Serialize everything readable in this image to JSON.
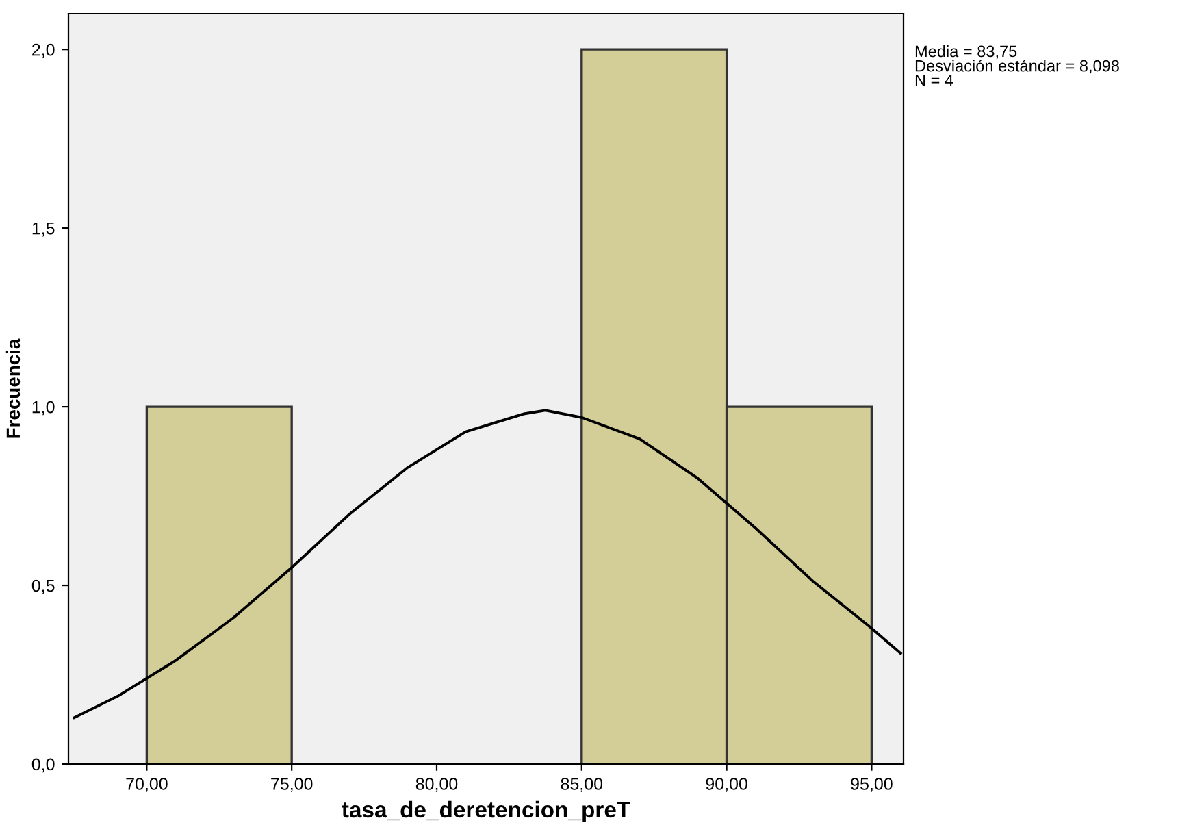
{
  "chart_data": {
    "type": "histogram",
    "xlabel": "tasa_de_deretencion_preT",
    "ylabel": "Frecuencia",
    "bins": [
      70,
      75,
      80,
      85,
      90,
      95
    ],
    "values": [
      1,
      0,
      0,
      2,
      1
    ],
    "color": "#d3ce97",
    "series": [
      {
        "type": "line",
        "color": "#000000",
        "x": [
          67.5,
          69,
          71,
          73,
          75,
          77,
          79,
          81,
          83,
          83.75,
          85,
          87,
          89,
          91,
          93,
          95,
          96
        ],
        "values": [
          0.13,
          0.19,
          0.29,
          0.41,
          0.55,
          0.7,
          0.83,
          0.93,
          0.98,
          0.99,
          0.97,
          0.91,
          0.8,
          0.66,
          0.51,
          0.38,
          0.31
        ]
      }
    ],
    "xlim": [
      67.3,
      96.1
    ],
    "ylim": [
      0,
      2.1
    ],
    "xticks": [
      {
        "value": 70,
        "label": "70,00"
      },
      {
        "value": 75,
        "label": "75,00"
      },
      {
        "value": 80,
        "label": "80,00"
      },
      {
        "value": 85,
        "label": "85,00"
      },
      {
        "value": 90,
        "label": "90,00"
      },
      {
        "value": 95,
        "label": "95,00"
      }
    ],
    "yticks": [
      {
        "value": 0,
        "label": "0,0"
      },
      {
        "value": 0.5,
        "label": "0,5"
      },
      {
        "value": 1,
        "label": "1,0"
      },
      {
        "value": 1.5,
        "label": "1,5"
      },
      {
        "value": 2,
        "label": "2,0"
      }
    ],
    "annotations": [
      "Media = 83,75\nDesviación estándar = 8,098\nN = 4"
    ],
    "grid": false,
    "legend": false
  }
}
